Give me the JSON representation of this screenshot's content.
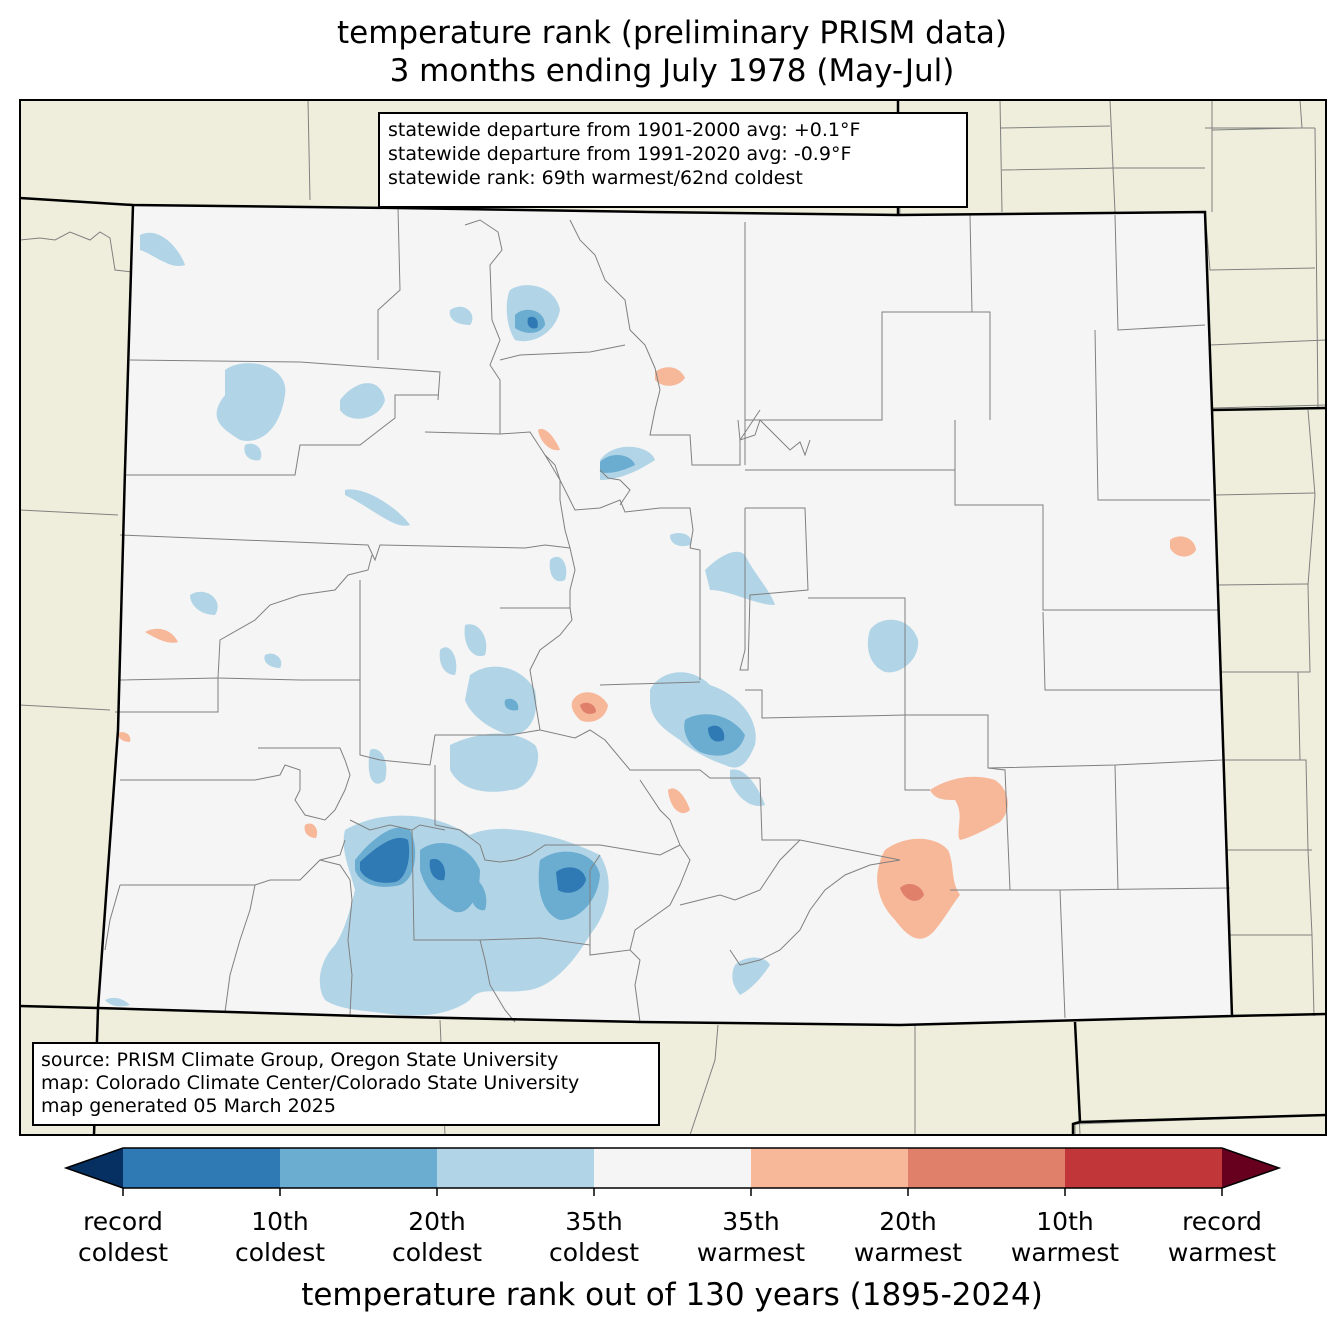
{
  "title": {
    "line1": "temperature rank (preliminary PRISM data)",
    "line2": "3 months ending July 1978 (May-Jul)"
  },
  "stats_box": {
    "line1": "statewide departure from 1901-2000 avg: +0.1°F",
    "line2": "statewide departure from 1991-2020 avg: -0.9°F",
    "line3": "statewide rank: 69th warmest/62nd coldest"
  },
  "source_box": {
    "line1": "source: PRISM Climate Group, Oregon State University",
    "line2": "map: Colorado Climate Center/Colorado State University",
    "line3": "map generated 05 March 2025"
  },
  "colorbar": {
    "title": "temperature rank out of 130 years (1895-2024)",
    "labels": [
      [
        "record",
        "coldest"
      ],
      [
        "10th",
        "coldest"
      ],
      [
        "20th",
        "coldest"
      ],
      [
        "35th",
        "coldest"
      ],
      [
        "35th",
        "warmest"
      ],
      [
        "20th",
        "warmest"
      ],
      [
        "10th",
        "warmest"
      ],
      [
        "record",
        "warmest"
      ]
    ],
    "colors": {
      "below_record_coldest": "#053061",
      "record_to_10th_coldest": "#2f79b5",
      "10th_to_20th_coldest": "#6bacd1",
      "20th_to_35th_coldest": "#b1d5e7",
      "middle": "#f5f5f5",
      "35th_to_20th_warmest": "#f7b799",
      "20th_to_10th_warmest": "#e0806a",
      "10th_to_record_warmest": "#c13639",
      "above_record_warmest": "#67001f"
    }
  },
  "map_colors": {
    "neighbor_land": "#efeedc",
    "state_border": "#000000",
    "county_border": "#808080"
  }
}
